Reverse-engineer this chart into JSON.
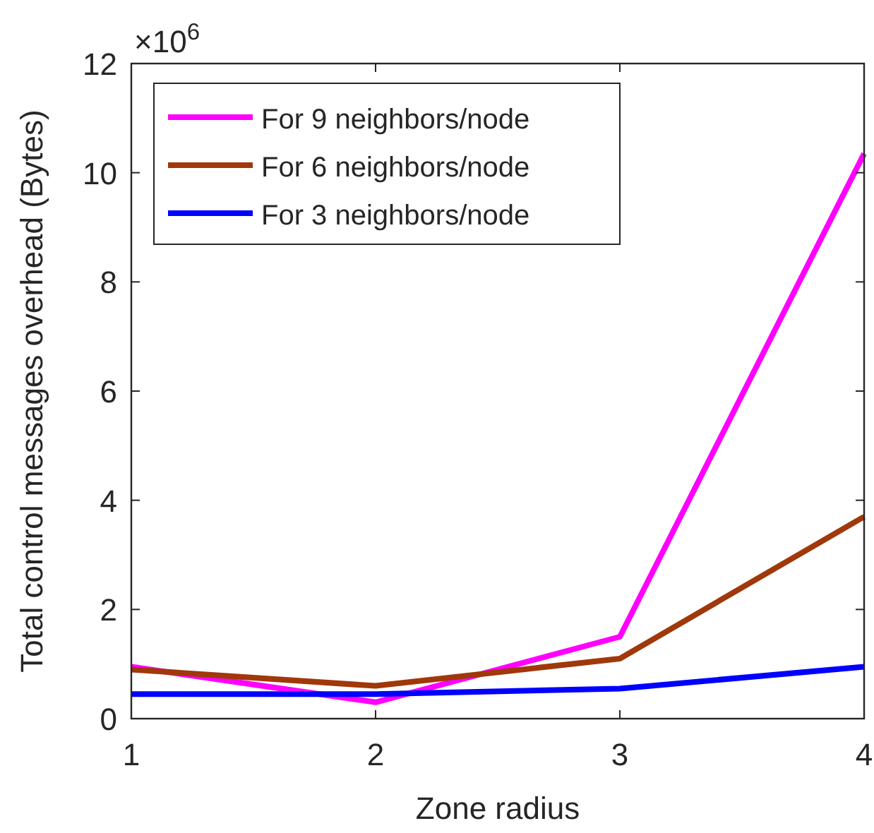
{
  "chart_data": {
    "type": "line",
    "xlabel": "Zone radius",
    "ylabel": "Total control messages overhead (Bytes)",
    "annotations": [
      "×10$^{6}$"
    ],
    "x": [
      1,
      2,
      3,
      4
    ],
    "xlim": [
      1,
      4
    ],
    "xticks": [
      1,
      2,
      3,
      4
    ],
    "ylim": [
      0,
      12
    ],
    "yticks": [
      0,
      2,
      4,
      6,
      8,
      10,
      12
    ],
    "series": [
      {
        "name": "For 9 neighbors/node",
        "color": "#ff00ff",
        "values": [
          0.95,
          0.3,
          1.5,
          10.35
        ]
      },
      {
        "name": "For 6 neighbors/node",
        "color": "#a0380a",
        "values": [
          0.9,
          0.6,
          1.1,
          3.7
        ]
      },
      {
        "name": "For 3 neighbors/node",
        "color": "#0000ff",
        "values": [
          0.45,
          0.45,
          0.55,
          0.95
        ]
      }
    ],
    "legend": "top left",
    "grid": false,
    "marker": "none",
    "line_style": "solid"
  }
}
